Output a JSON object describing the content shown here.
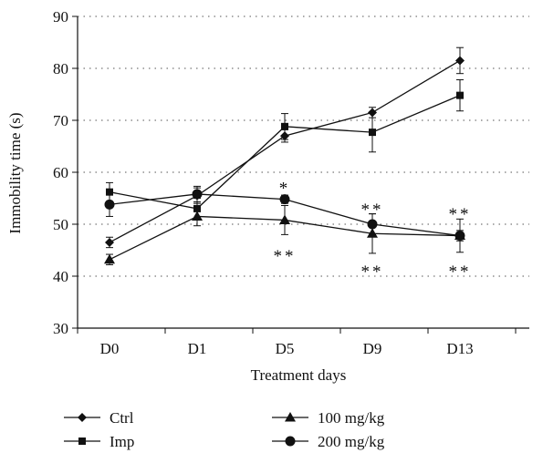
{
  "chart_data": {
    "type": "line",
    "xlabel": "Treatment days",
    "ylabel": "Immobility time (s)",
    "categories": [
      "D0",
      "D1",
      "D5",
      "D9",
      "D13"
    ],
    "ylim": [
      30,
      90
    ],
    "yticks": [
      30,
      40,
      50,
      60,
      70,
      80,
      90
    ],
    "grid": "horizontal dotted",
    "legend_position": "bottom",
    "series": [
      {
        "name": "Ctrl",
        "marker": "diamond",
        "values": [
          46.5,
          55.5,
          67.0,
          71.5,
          81.5
        ],
        "errors": [
          1.0,
          1.5,
          1.2,
          1.0,
          2.5
        ]
      },
      {
        "name": "Imp",
        "marker": "square",
        "values": [
          56.2,
          53.0,
          68.8,
          67.7,
          74.8
        ],
        "errors": [
          1.8,
          2.0,
          2.5,
          3.8,
          3.0
        ]
      },
      {
        "name": "100 mg/kg",
        "marker": "triangle",
        "values": [
          43.2,
          51.5,
          50.8,
          48.2,
          47.8
        ],
        "errors": [
          1.0,
          1.8,
          2.8,
          3.8,
          3.2
        ]
      },
      {
        "name": "200 mg/kg",
        "marker": "circle",
        "values": [
          53.8,
          55.8,
          54.8,
          50.0,
          47.8
        ],
        "errors": [
          2.3,
          1.5,
          0.8,
          2.0,
          1.0
        ]
      }
    ],
    "annotations": [
      {
        "text": "*",
        "category": "D5",
        "y": 57.3
      },
      {
        "text": "**",
        "category": "D5",
        "y": 44.2
      },
      {
        "text": "**",
        "category": "D9",
        "y": 53.2
      },
      {
        "text": "**",
        "category": "D9",
        "y": 41.2
      },
      {
        "text": "**",
        "category": "D13",
        "y": 52.3
      },
      {
        "text": "**",
        "category": "D13",
        "y": 41.2
      }
    ]
  }
}
